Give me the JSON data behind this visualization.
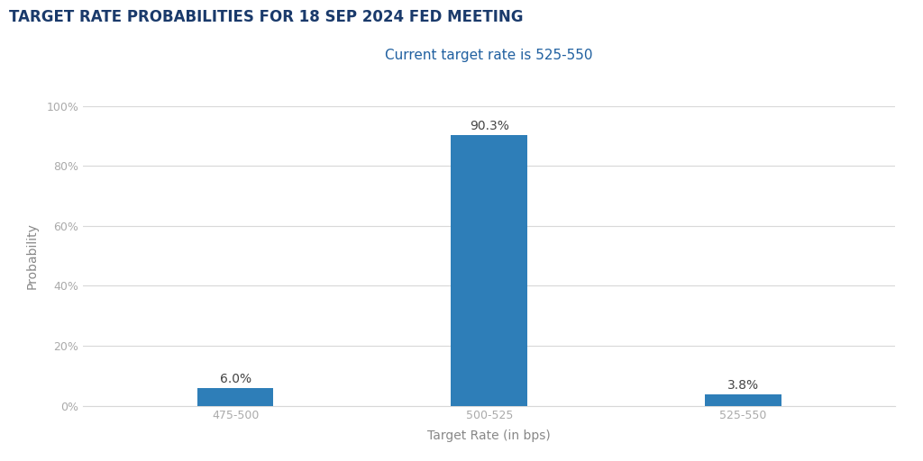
{
  "title": "TARGET RATE PROBABILITIES FOR 18 SEP 2024 FED MEETING",
  "subtitle": "Current target rate is 525-550",
  "categories": [
    "475-500",
    "500-525",
    "525-550"
  ],
  "values": [
    6.0,
    90.3,
    3.8
  ],
  "bar_color": "#2e7eb8",
  "xlabel": "Target Rate (in bps)",
  "ylabel": "Probability",
  "ylim": [
    0,
    100
  ],
  "yticks": [
    0,
    20,
    40,
    60,
    80,
    100
  ],
  "ytick_labels": [
    "0%",
    "20%",
    "40%",
    "60%",
    "80%",
    "100%"
  ],
  "title_color": "#1a3a6b",
  "subtitle_color": "#2060a0",
  "tick_label_color": "#aaaaaa",
  "axis_label_color": "#888888",
  "background_color": "#ffffff",
  "grid_color": "#d8d8d8",
  "bar_value_fontsize": 10,
  "title_fontsize": 12,
  "subtitle_fontsize": 11,
  "xlabel_fontsize": 10,
  "ylabel_fontsize": 10,
  "bar_width": 0.3
}
